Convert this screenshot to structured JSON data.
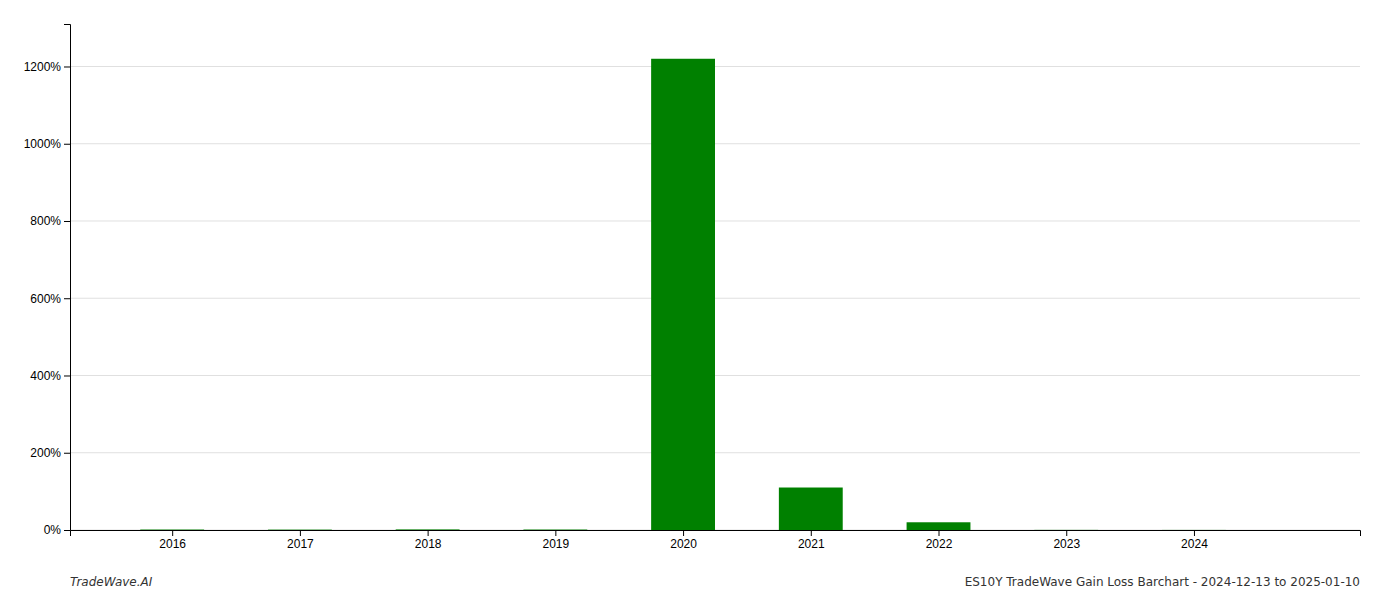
{
  "chart_data": {
    "type": "bar",
    "x": [
      2016,
      2017,
      2018,
      2019,
      2020,
      2021,
      2022,
      2023,
      2024
    ],
    "values": [
      1.2,
      1.0,
      1.5,
      1.2,
      1220.0,
      110.0,
      20.0,
      0.3,
      0.2
    ],
    "color": "#008000",
    "xlim": [
      2015.2,
      2025.3
    ],
    "xticks": [
      2016,
      2017,
      2018,
      2019,
      2020,
      2021,
      2022,
      2023,
      2024
    ],
    "ylim": [
      0,
      1310
    ],
    "yticks": [
      {
        "value": 0,
        "label": "0%"
      },
      {
        "value": 200,
        "label": "200%"
      },
      {
        "value": 400,
        "label": "400%"
      },
      {
        "value": 600,
        "label": "600%"
      },
      {
        "value": 800,
        "label": "800%"
      },
      {
        "value": 1000,
        "label": "1000%"
      },
      {
        "value": 1200,
        "label": "1200%"
      }
    ],
    "grid": true,
    "annotations": [
      "TradeWave.AI",
      "ES10Y TradeWave Gain Loss Barchart - 2024-12-13 to 2025-01-10"
    ]
  }
}
